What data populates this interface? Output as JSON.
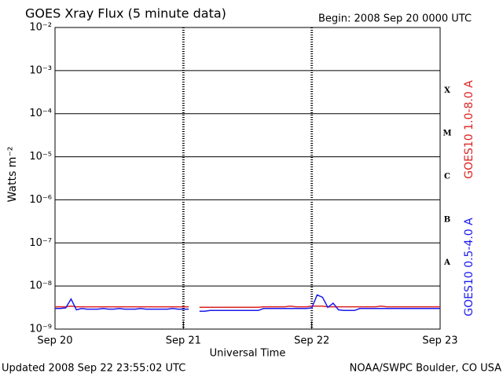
{
  "chart_data": {
    "type": "line",
    "title": "GOES Xray Flux (5 minute data)",
    "begin_label": "Begin:  2008 Sep 20 0000 UTC",
    "x_label": "Universal Time",
    "y_label": "Watts m⁻²",
    "updated_label": "Updated 2008 Sep 22 23:55:02 UTC",
    "source_label": "NOAA/SWPC Boulder, CO USA",
    "log_y": true,
    "grid": true,
    "xlim": [
      0,
      72
    ],
    "xticks": [
      {
        "value": 0,
        "label": "Sep 20"
      },
      {
        "value": 24,
        "label": "Sep 21"
      },
      {
        "value": 48,
        "label": "Sep 22"
      },
      {
        "value": 72,
        "label": "Sep 23"
      }
    ],
    "ylim": [
      1e-09,
      0.01
    ],
    "yticks": [
      {
        "value": 0.01,
        "label": "10⁻²"
      },
      {
        "value": 0.001,
        "label": "10⁻³"
      },
      {
        "value": 0.0001,
        "label": "10⁻⁴"
      },
      {
        "value": 1e-05,
        "label": "10⁻⁵"
      },
      {
        "value": 1e-06,
        "label": "10⁻⁶"
      },
      {
        "value": 1e-07,
        "label": "10⁻⁷"
      },
      {
        "value": 1e-08,
        "label": "10⁻⁸"
      },
      {
        "value": 1e-09,
        "label": "10⁻⁹"
      }
    ],
    "flare_classes": [
      "X",
      "M",
      "C",
      "B",
      "A"
    ],
    "x": [
      0,
      1,
      2,
      3,
      4,
      5,
      6,
      7,
      8,
      9,
      10,
      11,
      12,
      13,
      14,
      15,
      16,
      17,
      18,
      19,
      20,
      21,
      22,
      23,
      24,
      25,
      26,
      27,
      28,
      29,
      30,
      31,
      32,
      33,
      34,
      35,
      36,
      37,
      38,
      39,
      40,
      41,
      42,
      43,
      44,
      45,
      46,
      47,
      48,
      49,
      50,
      51,
      52,
      53,
      54,
      55,
      56,
      57,
      58,
      59,
      60,
      61,
      62,
      63,
      64,
      65,
      66,
      67,
      68,
      69,
      70,
      71,
      72
    ],
    "series": [
      {
        "name": "GOES10 1.0-8.0 A",
        "color": "#dd2222",
        "values": [
          3.3e-09,
          3.3e-09,
          3.3e-09,
          3.4e-09,
          3.3e-09,
          3.3e-09,
          3.3e-09,
          3.3e-09,
          3.3e-09,
          3.3e-09,
          3.3e-09,
          3.3e-09,
          3.3e-09,
          3.3e-09,
          3.3e-09,
          3.3e-09,
          3.3e-09,
          3.3e-09,
          3.3e-09,
          3.3e-09,
          3.3e-09,
          3.3e-09,
          3.3e-09,
          3.3e-09,
          3.3e-09,
          3.3e-09,
          null,
          3.2e-09,
          3.2e-09,
          3.2e-09,
          3.2e-09,
          3.2e-09,
          3.2e-09,
          3.2e-09,
          3.2e-09,
          3.2e-09,
          3.2e-09,
          3.2e-09,
          3.2e-09,
          3.3e-09,
          3.3e-09,
          3.3e-09,
          3.3e-09,
          3.3e-09,
          3.4e-09,
          3.3e-09,
          3.3e-09,
          3.3e-09,
          3.4e-09,
          3.4e-09,
          3.4e-09,
          3.3e-09,
          3.3e-09,
          3.3e-09,
          3.3e-09,
          3.3e-09,
          3.3e-09,
          3.3e-09,
          3.3e-09,
          3.3e-09,
          3.3e-09,
          3.4e-09,
          3.3e-09,
          3.3e-09,
          3.3e-09,
          3.3e-09,
          3.3e-09,
          3.3e-09,
          3.3e-09,
          3.3e-09,
          3.3e-09,
          3.3e-09,
          3.3e-09
        ]
      },
      {
        "name": "GOES10 0.5-4.0 A",
        "color": "#1a1aee",
        "values": [
          3e-09,
          3e-09,
          3.1e-09,
          5e-09,
          2.8e-09,
          3e-09,
          2.9e-09,
          2.9e-09,
          2.9e-09,
          3e-09,
          2.9e-09,
          2.9e-09,
          3e-09,
          2.9e-09,
          2.9e-09,
          2.9e-09,
          3e-09,
          2.9e-09,
          2.9e-09,
          2.9e-09,
          2.9e-09,
          2.9e-09,
          3e-09,
          2.9e-09,
          2.9e-09,
          2.9e-09,
          null,
          2.6e-09,
          2.6e-09,
          2.7e-09,
          2.7e-09,
          2.7e-09,
          2.7e-09,
          2.7e-09,
          2.7e-09,
          2.7e-09,
          2.7e-09,
          2.7e-09,
          2.7e-09,
          3e-09,
          3e-09,
          3e-09,
          3e-09,
          3e-09,
          3e-09,
          3e-09,
          3e-09,
          3e-09,
          3.1e-09,
          6.2e-09,
          5.5e-09,
          3.2e-09,
          4e-09,
          2.8e-09,
          2.7e-09,
          2.7e-09,
          2.7e-09,
          3e-09,
          3e-09,
          3e-09,
          3e-09,
          3e-09,
          3e-09,
          3e-09,
          3e-09,
          3e-09,
          3e-09,
          3e-09,
          3e-09,
          3e-09,
          3e-09,
          3e-09,
          3e-09
        ]
      }
    ]
  }
}
